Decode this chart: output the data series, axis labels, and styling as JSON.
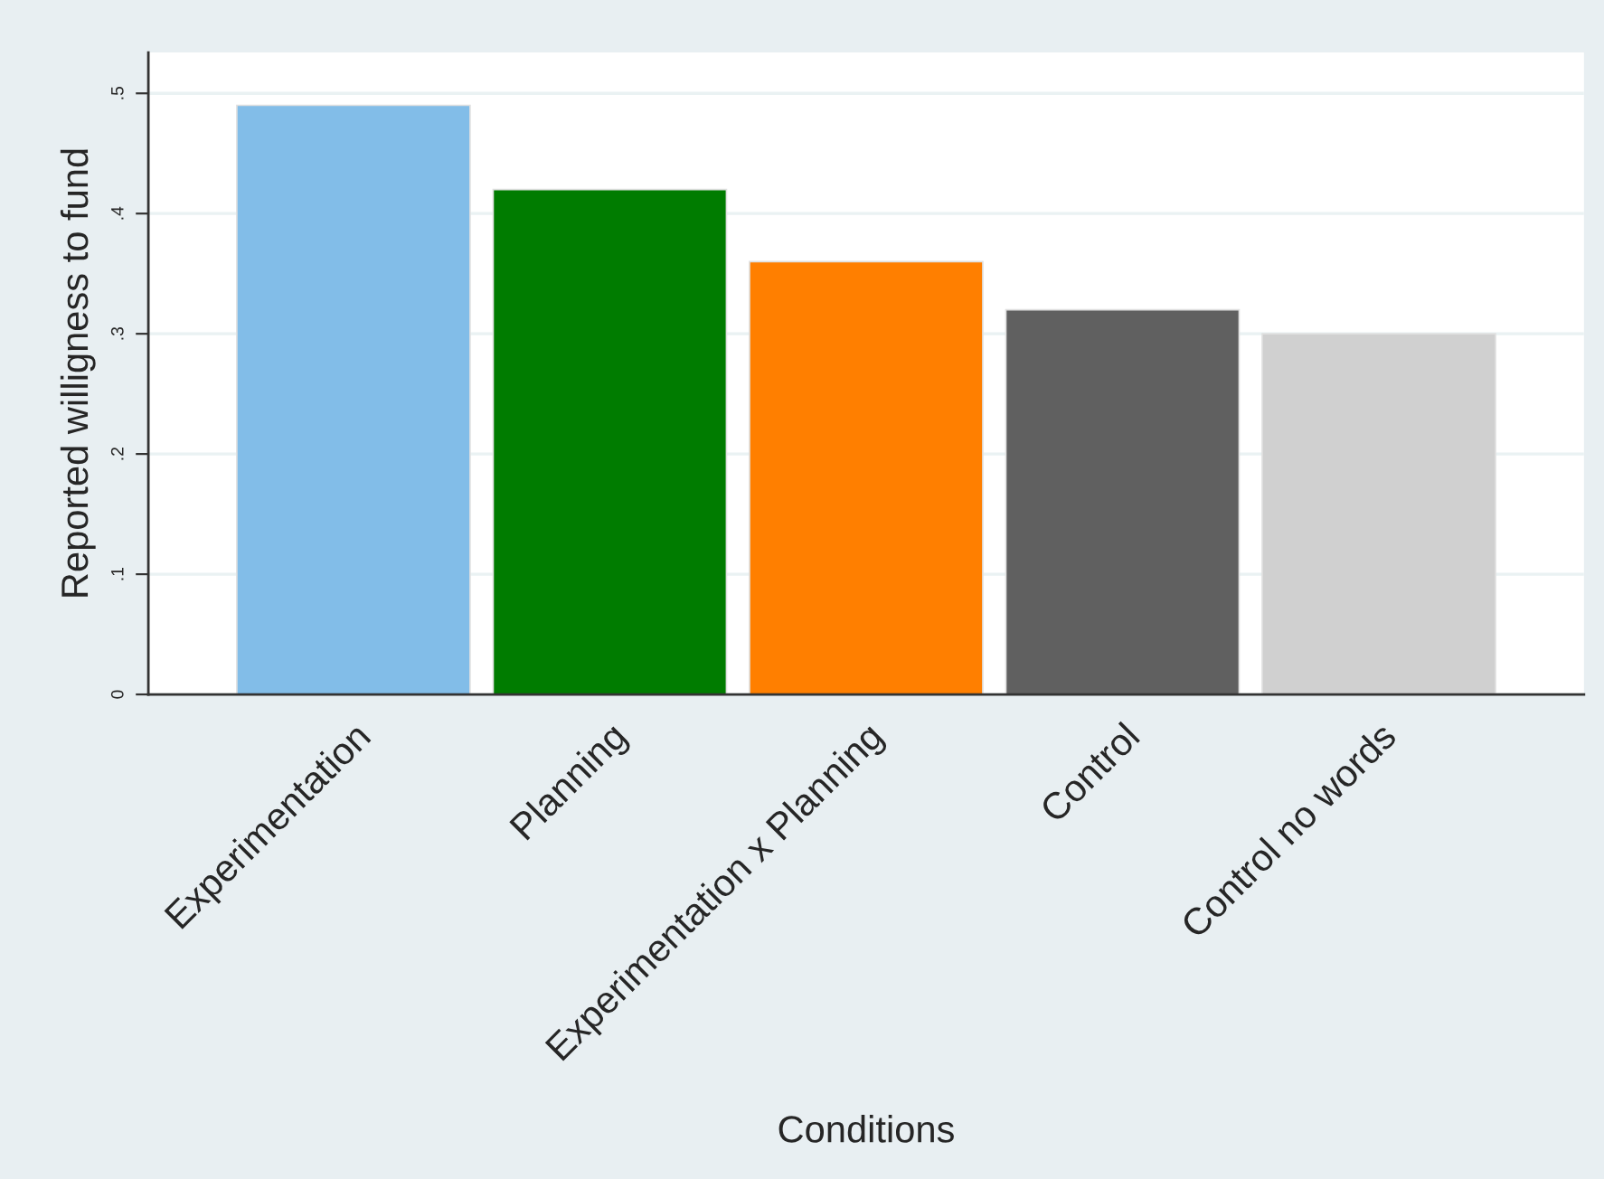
{
  "chart_data": {
    "type": "bar",
    "xlabel": "Conditions",
    "ylabel": "Reported willigness to fund",
    "categories": [
      "Experimentation",
      "Planning",
      "Experimentation x Planning",
      "Control",
      "Control no words"
    ],
    "values": [
      0.49,
      0.42,
      0.36,
      0.32,
      0.3
    ],
    "colors": [
      "#82bde8",
      "#007c00",
      "#ff7f00",
      "#606060",
      "#d0d0d0"
    ],
    "ylim": [
      0,
      0.534
    ],
    "yticks": [
      {
        "value": 0,
        "label": "0"
      },
      {
        "value": 0.1,
        "label": ".1"
      },
      {
        "value": 0.2,
        "label": ".2"
      },
      {
        "value": 0.3,
        "label": ".3"
      },
      {
        "value": 0.4,
        "label": ".4"
      },
      {
        "value": 0.5,
        "label": ".5"
      }
    ],
    "grid": "y"
  }
}
